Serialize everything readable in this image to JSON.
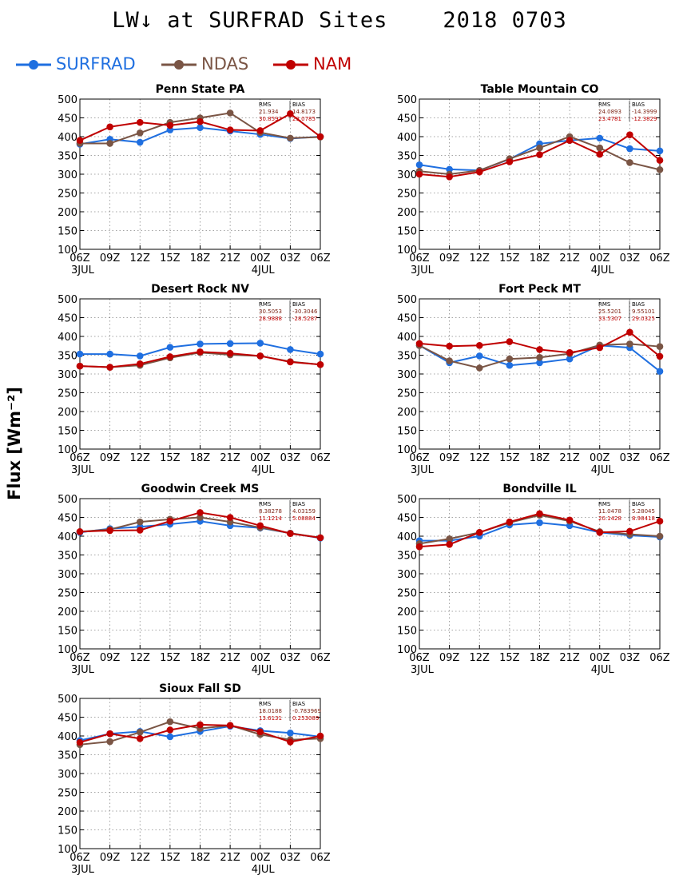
{
  "title": "LW↓ at SURFRAD Sites    2018 0703",
  "y_axis_label": "Flux [Wm⁻²]",
  "legend": [
    {
      "name": "SURFRAD",
      "color": "#1f6fe0"
    },
    {
      "name": "NDAS",
      "color": "#7a5545"
    },
    {
      "name": "NAM",
      "color": "#c00000"
    }
  ],
  "stats_header": {
    "rms": "RMS",
    "bias": "BIAS"
  },
  "chart_data": [
    {
      "type": "line",
      "title": "Penn State PA",
      "categories": [
        "06Z",
        "09Z",
        "12Z",
        "15Z",
        "18Z",
        "21Z",
        "00Z",
        "03Z",
        "06Z"
      ],
      "date_labels": [
        "3JUL",
        "",
        "",
        "",
        "",
        "",
        "4JUL",
        "",
        ""
      ],
      "ylim": [
        100,
        500
      ],
      "yticks": [
        100,
        150,
        200,
        250,
        300,
        350,
        400,
        450,
        500
      ],
      "grid": true,
      "series": [
        {
          "name": "SURFRAD",
          "values": [
            380,
            393,
            385,
            418,
            424,
            415,
            406,
            395,
            400
          ]
        },
        {
          "name": "NDAS",
          "values": [
            382,
            382,
            410,
            438,
            450,
            463,
            411,
            396,
            399
          ]
        },
        {
          "name": "NAM",
          "values": [
            390,
            426,
            438,
            430,
            440,
            418,
            416,
            461,
            400
          ]
        }
      ],
      "stats": {
        "ndas": {
          "rms": "21.934",
          "bias": "14.8173"
        },
        "nam": {
          "rms": "30.8597",
          "bias": "23.0785"
        }
      }
    },
    {
      "type": "line",
      "title": "Table Mountain CO",
      "categories": [
        "06Z",
        "09Z",
        "12Z",
        "15Z",
        "18Z",
        "21Z",
        "00Z",
        "03Z",
        "06Z"
      ],
      "date_labels": [
        "3JUL",
        "",
        "",
        "",
        "",
        "",
        "4JUL",
        "",
        ""
      ],
      "ylim": [
        100,
        500
      ],
      "yticks": [
        100,
        150,
        200,
        250,
        300,
        350,
        400,
        450,
        500
      ],
      "grid": true,
      "series": [
        {
          "name": "SURFRAD",
          "values": [
            325,
            313,
            310,
            340,
            381,
            390,
            396,
            368,
            362
          ]
        },
        {
          "name": "NDAS",
          "values": [
            308,
            300,
            310,
            341,
            370,
            400,
            370,
            331,
            312
          ]
        },
        {
          "name": "NAM",
          "values": [
            300,
            293,
            306,
            333,
            352,
            390,
            353,
            405,
            337
          ]
        }
      ],
      "stats": {
        "ndas": {
          "rms": "24.0893",
          "bias": "-14.3999"
        },
        "nam": {
          "rms": "23.4781",
          "bias": "-12.3829"
        }
      }
    },
    {
      "type": "line",
      "title": "Desert Rock NV",
      "categories": [
        "06Z",
        "09Z",
        "12Z",
        "15Z",
        "18Z",
        "21Z",
        "00Z",
        "03Z",
        "06Z"
      ],
      "date_labels": [
        "3JUL",
        "",
        "",
        "",
        "",
        "",
        "4JUL",
        "",
        ""
      ],
      "ylim": [
        100,
        500
      ],
      "yticks": [
        100,
        150,
        200,
        250,
        300,
        350,
        400,
        450,
        500
      ],
      "grid": true,
      "series": [
        {
          "name": "SURFRAD",
          "values": [
            353,
            353,
            348,
            371,
            380,
            381,
            382,
            365,
            353
          ]
        },
        {
          "name": "NDAS",
          "values": [
            321,
            318,
            323,
            343,
            357,
            351,
            348,
            333,
            325
          ]
        },
        {
          "name": "NAM",
          "values": [
            321,
            318,
            327,
            346,
            359,
            355,
            348,
            332,
            325
          ]
        }
      ],
      "stats": {
        "ndas": {
          "rms": "30.5053",
          "bias": "-30.3046"
        },
        "nam": {
          "rms": "28.9888",
          "bias": "-28.5287"
        }
      }
    },
    {
      "type": "line",
      "title": "Fort Peck MT",
      "categories": [
        "06Z",
        "09Z",
        "12Z",
        "15Z",
        "18Z",
        "21Z",
        "00Z",
        "03Z",
        "06Z"
      ],
      "date_labels": [
        "3JUL",
        "",
        "",
        "",
        "",
        "",
        "4JUL",
        "",
        ""
      ],
      "ylim": [
        100,
        500
      ],
      "yticks": [
        100,
        150,
        200,
        250,
        300,
        350,
        400,
        450,
        500
      ],
      "grid": true,
      "series": [
        {
          "name": "SURFRAD",
          "values": [
            376,
            330,
            348,
            323,
            330,
            340,
            376,
            370,
            307
          ]
        },
        {
          "name": "NDAS",
          "values": [
            376,
            335,
            316,
            340,
            344,
            354,
            377,
            380,
            373
          ]
        },
        {
          "name": "NAM",
          "values": [
            381,
            374,
            376,
            386,
            365,
            357,
            370,
            411,
            347
          ]
        }
      ],
      "stats": {
        "ndas": {
          "rms": "25.5201",
          "bias": "9.55101"
        },
        "nam": {
          "rms": "33.5307",
          "bias": "29.0325"
        }
      }
    },
    {
      "type": "line",
      "title": "Goodwin Creek MS",
      "categories": [
        "06Z",
        "09Z",
        "12Z",
        "15Z",
        "18Z",
        "21Z",
        "00Z",
        "03Z",
        "06Z"
      ],
      "date_labels": [
        "3JUL",
        "",
        "",
        "",
        "",
        "",
        "4JUL",
        "",
        ""
      ],
      "ylim": [
        100,
        500
      ],
      "yticks": [
        100,
        150,
        200,
        250,
        300,
        350,
        400,
        450,
        500
      ],
      "grid": true,
      "series": [
        {
          "name": "SURFRAD",
          "values": [
            410,
            420,
            425,
            432,
            440,
            428,
            422,
            408,
            395
          ]
        },
        {
          "name": "NDAS",
          "values": [
            412,
            418,
            438,
            445,
            450,
            438,
            423,
            408,
            396
          ]
        },
        {
          "name": "NAM",
          "values": [
            412,
            415,
            416,
            440,
            463,
            450,
            428,
            407,
            396
          ]
        }
      ],
      "stats": {
        "ndas": {
          "rms": "8.38278",
          "bias": "4.03159"
        },
        "nam": {
          "rms": "11.1214",
          "bias": "5.08884"
        }
      }
    },
    {
      "type": "line",
      "title": "Bondville IL",
      "categories": [
        "06Z",
        "09Z",
        "12Z",
        "15Z",
        "18Z",
        "21Z",
        "00Z",
        "03Z",
        "06Z"
      ],
      "date_labels": [
        "3JUL",
        "",
        "",
        "",
        "",
        "",
        "4JUL",
        "",
        ""
      ],
      "ylim": [
        100,
        500
      ],
      "yticks": [
        100,
        150,
        200,
        250,
        300,
        350,
        400,
        450,
        500
      ],
      "grid": true,
      "series": [
        {
          "name": "SURFRAD",
          "values": [
            388,
            388,
            400,
            430,
            436,
            428,
            410,
            402,
            398
          ]
        },
        {
          "name": "NDAS",
          "values": [
            380,
            393,
            410,
            436,
            456,
            440,
            412,
            405,
            400
          ]
        },
        {
          "name": "NAM",
          "values": [
            372,
            378,
            410,
            438,
            460,
            443,
            410,
            413,
            440
          ]
        }
      ],
      "stats": {
        "ndas": {
          "rms": "11.0478",
          "bias": "5.28045"
        },
        "nam": {
          "rms": "20.1428",
          "bias": "8.98418"
        }
      }
    },
    {
      "type": "line",
      "title": "Sioux Fall SD",
      "categories": [
        "06Z",
        "09Z",
        "12Z",
        "15Z",
        "18Z",
        "21Z",
        "00Z",
        "03Z",
        "06Z"
      ],
      "date_labels": [
        "3JUL",
        "",
        "",
        "",
        "",
        "",
        "4JUL",
        "",
        ""
      ],
      "ylim": [
        100,
        500
      ],
      "yticks": [
        100,
        150,
        200,
        250,
        300,
        350,
        400,
        450,
        500
      ],
      "grid": true,
      "series": [
        {
          "name": "SURFRAD",
          "values": [
            388,
            406,
            412,
            398,
            412,
            426,
            414,
            408,
            398
          ]
        },
        {
          "name": "NDAS",
          "values": [
            377,
            385,
            410,
            438,
            420,
            428,
            404,
            390,
            393
          ]
        },
        {
          "name": "NAM",
          "values": [
            383,
            406,
            393,
            416,
            430,
            428,
            411,
            384,
            400
          ]
        }
      ],
      "stats": {
        "ndas": {
          "rms": "18.0188",
          "bias": "-0.783969"
        },
        "nam": {
          "rms": "13.6131",
          "bias": "0.253089"
        }
      }
    }
  ]
}
